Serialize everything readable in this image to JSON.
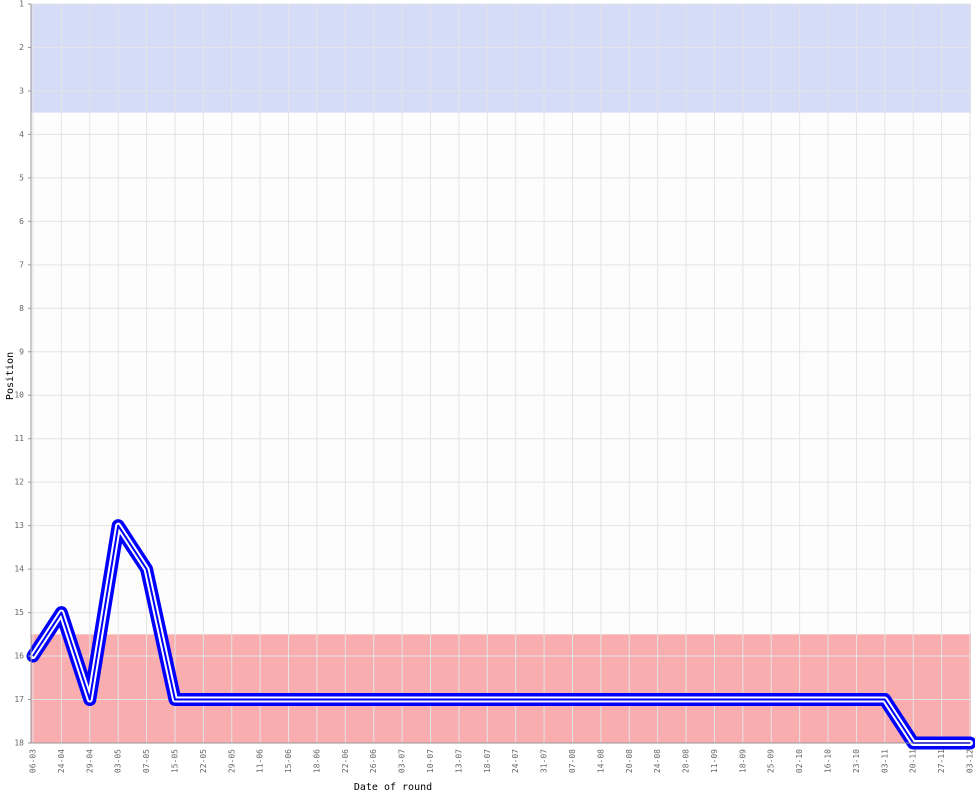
{
  "chart_data": {
    "type": "line",
    "x_label": "Date of round",
    "y_label": "Position",
    "categories": [
      "06-03",
      "24-04",
      "29-04",
      "03-05",
      "07-05",
      "15-05",
      "22-05",
      "29-05",
      "11-06",
      "15-06",
      "18-06",
      "22-06",
      "26-06",
      "03-07",
      "10-07",
      "13-07",
      "18-07",
      "24-07",
      "31-07",
      "07-08",
      "14-08",
      "20-08",
      "24-08",
      "28-08",
      "11-09",
      "18-09",
      "25-09",
      "02-10",
      "16-10",
      "23-10",
      "03-11",
      "20-11",
      "27-11",
      "03-12"
    ],
    "series": [
      {
        "color": "#0000ff",
        "values": [
          16,
          15,
          17,
          13,
          14,
          17,
          17,
          17,
          17,
          17,
          17,
          17,
          17,
          17,
          17,
          17,
          17,
          17,
          17,
          17,
          17,
          17,
          17,
          17,
          17,
          17,
          17,
          17,
          17,
          17,
          17,
          18,
          18,
          18
        ]
      }
    ],
    "ylim": [
      1,
      18
    ],
    "inverted": true,
    "yticks": [
      1,
      2,
      3,
      4,
      5,
      6,
      7,
      8,
      9,
      10,
      11,
      12,
      13,
      14,
      15,
      16,
      17,
      18
    ],
    "grid": true,
    "bands": [
      {
        "from": 1,
        "to": 3.5,
        "color": "#d4dcf8"
      },
      {
        "from": 15.5,
        "to": 18,
        "color": "#f9adaf"
      }
    ]
  }
}
